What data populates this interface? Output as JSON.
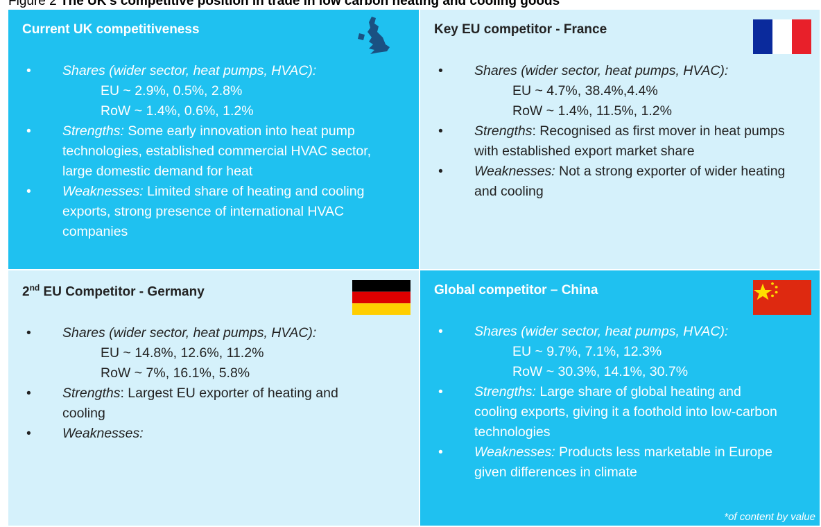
{
  "header": {
    "figure": "Figure 2",
    "title": "The UK's competitive position in trade in low carbon heating and cooling goods"
  },
  "panels": [
    {
      "title": "Current UK competitiveness",
      "bullets": [
        {
          "label": "Shares (wider sector, heat pumps, HVAC):",
          "lines": [
            "EU ~ 2.9%, 0.5%, 2.8%",
            "RoW ~ 1.4%, 0.6%, 1.2%"
          ]
        },
        {
          "label": "Strengths:",
          "text": "Some early innovation into heat pump technologies, established commercial HVAC sector, large domestic demand for heat"
        },
        {
          "label": "Weaknesses:",
          "text": "Limited share of heating and cooling exports, strong presence of international HVAC companies"
        }
      ]
    },
    {
      "title": "Key EU competitor - France",
      "bullets": [
        {
          "label": "Shares (wider sector, heat pumps, HVAC):",
          "lines": [
            "EU ~ 4.7%, 38.4%,4.4%",
            "RoW ~ 1.4%, 11.5%, 1.2%"
          ]
        },
        {
          "label": "Strengths",
          "text": ": Recognised as first mover in heat pumps with established export market share"
        },
        {
          "label": "Weaknesses:",
          "text": "Not a strong exporter of wider heating and cooling"
        }
      ]
    },
    {
      "title": {
        "pre": "2",
        "sup": "nd",
        "post": " EU Competitor - Germany"
      },
      "bullets": [
        {
          "label": "Shares (wider sector, heat pumps, HVAC):",
          "lines": [
            "EU ~ 14.8%, 12.6%, 11.2%",
            "RoW ~ 7%, 16.1%, 5.8%"
          ]
        },
        {
          "label": "Strengths",
          "text": ": Largest EU exporter of heating and cooling"
        },
        {
          "label": "Weaknesses:"
        }
      ]
    },
    {
      "title": "Global competitor – China",
      "bullets": [
        {
          "label": "Shares (wider sector, heat pumps, HVAC):",
          "lines": [
            "EU ~ 9.7%, 7.1%, 12.3%",
            "RoW ~ 30.3%, 14.1%, 30.7%"
          ]
        },
        {
          "label": "Strengths:",
          "text": "Large share of global heating and cooling exports, giving it a foothold into low-carbon technologies"
        },
        {
          "label": "Weaknesses:",
          "text": "Products less marketable in Europe given differences in climate"
        }
      ],
      "footnote": "*of content by value"
    }
  ]
}
